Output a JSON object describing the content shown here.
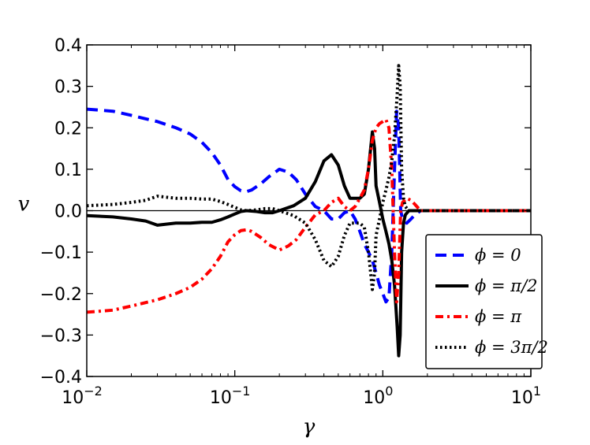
{
  "chart_data": {
    "type": "line",
    "title": "",
    "xlabel": "γ",
    "ylabel": "v",
    "xscale": "log",
    "xlim": [
      0.01,
      10
    ],
    "ylim": [
      -0.4,
      0.4
    ],
    "grid": false,
    "x_ticks": [
      {
        "value": 0.01,
        "base": "10",
        "exp": "−2"
      },
      {
        "value": 0.1,
        "base": "10",
        "exp": "−1"
      },
      {
        "value": 1,
        "base": "10",
        "exp": "0"
      },
      {
        "value": 10,
        "base": "10",
        "exp": "1"
      }
    ],
    "y_ticks": [
      {
        "value": 0.4,
        "label": "0.4"
      },
      {
        "value": 0.3,
        "label": "0.3"
      },
      {
        "value": 0.2,
        "label": "0.2"
      },
      {
        "value": 0.1,
        "label": "0.1"
      },
      {
        "value": 0.0,
        "label": "0.0"
      },
      {
        "value": -0.1,
        "label": "−0.1"
      },
      {
        "value": -0.2,
        "label": "−0.2"
      },
      {
        "value": -0.3,
        "label": "−0.3"
      },
      {
        "value": -0.4,
        "label": "−0.4"
      }
    ],
    "legend_position": "lower-right",
    "series": [
      {
        "name": "ϕ = 0",
        "color": "#0000ff",
        "style": "dashed",
        "points": [
          [
            0.01,
            0.245
          ],
          [
            0.015,
            0.24
          ],
          [
            0.02,
            0.23
          ],
          [
            0.03,
            0.215
          ],
          [
            0.04,
            0.2
          ],
          [
            0.05,
            0.185
          ],
          [
            0.06,
            0.165
          ],
          [
            0.07,
            0.14
          ],
          [
            0.08,
            0.11
          ],
          [
            0.09,
            0.075
          ],
          [
            0.1,
            0.058
          ],
          [
            0.11,
            0.048
          ],
          [
            0.12,
            0.046
          ],
          [
            0.13,
            0.05
          ],
          [
            0.15,
            0.065
          ],
          [
            0.17,
            0.082
          ],
          [
            0.2,
            0.1
          ],
          [
            0.23,
            0.093
          ],
          [
            0.26,
            0.075
          ],
          [
            0.3,
            0.04
          ],
          [
            0.35,
            0.01
          ],
          [
            0.4,
            0.0
          ],
          [
            0.45,
            -0.02
          ],
          [
            0.5,
            -0.02
          ],
          [
            0.55,
            -0.005
          ],
          [
            0.6,
            0.0
          ],
          [
            0.65,
            -0.02
          ],
          [
            0.7,
            -0.05
          ],
          [
            0.75,
            -0.08
          ],
          [
            0.8,
            -0.1
          ],
          [
            0.85,
            -0.12
          ],
          [
            0.9,
            -0.15
          ],
          [
            0.95,
            -0.18
          ],
          [
            1.0,
            -0.2
          ],
          [
            1.05,
            -0.22
          ],
          [
            1.1,
            -0.21
          ],
          [
            1.15,
            -0.1
          ],
          [
            1.2,
            0.1
          ],
          [
            1.24,
            0.24
          ],
          [
            1.28,
            0.2
          ],
          [
            1.32,
            0.0
          ],
          [
            1.36,
            -0.02
          ],
          [
            1.45,
            -0.03
          ],
          [
            1.55,
            -0.02
          ],
          [
            1.65,
            -0.01
          ],
          [
            1.8,
            0.0
          ],
          [
            2.0,
            0.0
          ],
          [
            10,
            0.0
          ]
        ]
      },
      {
        "name": "ϕ = π/2",
        "color": "#000000",
        "style": "solid",
        "points": [
          [
            0.01,
            -0.012
          ],
          [
            0.015,
            -0.015
          ],
          [
            0.02,
            -0.02
          ],
          [
            0.025,
            -0.025
          ],
          [
            0.03,
            -0.035
          ],
          [
            0.04,
            -0.03
          ],
          [
            0.05,
            -0.03
          ],
          [
            0.06,
            -0.028
          ],
          [
            0.07,
            -0.028
          ],
          [
            0.08,
            -0.022
          ],
          [
            0.09,
            -0.015
          ],
          [
            0.1,
            -0.008
          ],
          [
            0.11,
            -0.002
          ],
          [
            0.12,
            0.0
          ],
          [
            0.14,
            -0.002
          ],
          [
            0.16,
            -0.005
          ],
          [
            0.18,
            -0.005
          ],
          [
            0.2,
            0.0
          ],
          [
            0.25,
            0.012
          ],
          [
            0.3,
            0.03
          ],
          [
            0.35,
            0.07
          ],
          [
            0.4,
            0.12
          ],
          [
            0.45,
            0.135
          ],
          [
            0.5,
            0.11
          ],
          [
            0.55,
            0.06
          ],
          [
            0.6,
            0.03
          ],
          [
            0.65,
            0.03
          ],
          [
            0.7,
            0.03
          ],
          [
            0.75,
            0.04
          ],
          [
            0.8,
            0.1
          ],
          [
            0.85,
            0.19
          ],
          [
            0.88,
            0.15
          ],
          [
            0.9,
            0.06
          ],
          [
            0.95,
            0.02
          ],
          [
            1.0,
            -0.02
          ],
          [
            1.05,
            -0.05
          ],
          [
            1.1,
            -0.08
          ],
          [
            1.15,
            -0.12
          ],
          [
            1.2,
            -0.18
          ],
          [
            1.25,
            -0.28
          ],
          [
            1.28,
            -0.35
          ],
          [
            1.31,
            -0.3
          ],
          [
            1.34,
            -0.1
          ],
          [
            1.38,
            -0.03
          ],
          [
            1.42,
            -0.01
          ],
          [
            1.5,
            0.0
          ],
          [
            2.0,
            0.0
          ],
          [
            10,
            0.0
          ]
        ]
      },
      {
        "name": "ϕ = π",
        "color": "#ff0000",
        "style": "dashdot",
        "points": [
          [
            0.01,
            -0.245
          ],
          [
            0.015,
            -0.24
          ],
          [
            0.02,
            -0.23
          ],
          [
            0.03,
            -0.215
          ],
          [
            0.04,
            -0.2
          ],
          [
            0.05,
            -0.185
          ],
          [
            0.06,
            -0.165
          ],
          [
            0.07,
            -0.14
          ],
          [
            0.08,
            -0.11
          ],
          [
            0.09,
            -0.075
          ],
          [
            0.1,
            -0.058
          ],
          [
            0.11,
            -0.048
          ],
          [
            0.12,
            -0.046
          ],
          [
            0.13,
            -0.05
          ],
          [
            0.15,
            -0.065
          ],
          [
            0.17,
            -0.082
          ],
          [
            0.2,
            -0.095
          ],
          [
            0.23,
            -0.085
          ],
          [
            0.26,
            -0.07
          ],
          [
            0.3,
            -0.04
          ],
          [
            0.35,
            -0.01
          ],
          [
            0.4,
            0.0
          ],
          [
            0.45,
            0.02
          ],
          [
            0.5,
            0.03
          ],
          [
            0.55,
            0.01
          ],
          [
            0.6,
            0.0
          ],
          [
            0.65,
            0.01
          ],
          [
            0.7,
            0.03
          ],
          [
            0.75,
            0.05
          ],
          [
            0.8,
            0.1
          ],
          [
            0.85,
            0.17
          ],
          [
            0.9,
            0.2
          ],
          [
            0.95,
            0.21
          ],
          [
            1.0,
            0.215
          ],
          [
            1.05,
            0.22
          ],
          [
            1.1,
            0.2
          ],
          [
            1.15,
            0.1
          ],
          [
            1.2,
            -0.1
          ],
          [
            1.24,
            -0.22
          ],
          [
            1.28,
            -0.15
          ],
          [
            1.32,
            0.0
          ],
          [
            1.36,
            0.02
          ],
          [
            1.45,
            0.03
          ],
          [
            1.55,
            0.025
          ],
          [
            1.65,
            0.015
          ],
          [
            1.8,
            0.0
          ],
          [
            2.0,
            0.0
          ],
          [
            10,
            0.0
          ]
        ]
      },
      {
        "name": "ϕ = 3π/2",
        "color": "#000000",
        "style": "dotted",
        "points": [
          [
            0.01,
            0.012
          ],
          [
            0.015,
            0.015
          ],
          [
            0.02,
            0.02
          ],
          [
            0.025,
            0.025
          ],
          [
            0.03,
            0.035
          ],
          [
            0.04,
            0.03
          ],
          [
            0.05,
            0.03
          ],
          [
            0.06,
            0.028
          ],
          [
            0.07,
            0.028
          ],
          [
            0.08,
            0.022
          ],
          [
            0.09,
            0.015
          ],
          [
            0.1,
            0.008
          ],
          [
            0.11,
            0.002
          ],
          [
            0.12,
            0.0
          ],
          [
            0.14,
            0.002
          ],
          [
            0.16,
            0.005
          ],
          [
            0.18,
            0.005
          ],
          [
            0.2,
            0.0
          ],
          [
            0.25,
            -0.012
          ],
          [
            0.3,
            -0.03
          ],
          [
            0.35,
            -0.07
          ],
          [
            0.4,
            -0.12
          ],
          [
            0.45,
            -0.135
          ],
          [
            0.5,
            -0.11
          ],
          [
            0.55,
            -0.06
          ],
          [
            0.6,
            -0.03
          ],
          [
            0.65,
            -0.03
          ],
          [
            0.7,
            -0.03
          ],
          [
            0.75,
            -0.04
          ],
          [
            0.8,
            -0.1
          ],
          [
            0.85,
            -0.19
          ],
          [
            0.88,
            -0.15
          ],
          [
            0.9,
            -0.06
          ],
          [
            0.95,
            -0.02
          ],
          [
            1.0,
            0.02
          ],
          [
            1.05,
            0.05
          ],
          [
            1.1,
            0.08
          ],
          [
            1.15,
            0.12
          ],
          [
            1.2,
            0.18
          ],
          [
            1.25,
            0.28
          ],
          [
            1.28,
            0.35
          ],
          [
            1.31,
            0.3
          ],
          [
            1.34,
            0.1
          ],
          [
            1.38,
            0.03
          ],
          [
            1.42,
            0.01
          ],
          [
            1.5,
            0.0
          ],
          [
            2.0,
            0.0
          ],
          [
            10,
            0.0
          ]
        ]
      }
    ]
  }
}
